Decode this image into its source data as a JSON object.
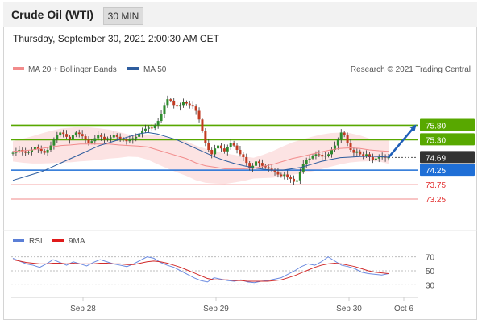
{
  "header": {
    "title": "Crude Oil (WTI)",
    "timeframe": "30 MIN"
  },
  "datetime": "Thursday, September 30, 2021 2:00:30 AM CET",
  "copyright": "Research © 2021 Trading Central",
  "chart_data": [
    {
      "type": "line",
      "panel": "price",
      "legend": [
        "MA 20 + Bollinger Bands",
        "MA 50"
      ],
      "legend_position": "top-left",
      "x_ticks": [
        "Sep 28",
        "Sep 29",
        "Sep 30",
        "Oct 6"
      ],
      "y_range": [
        73.0,
        77.4
      ],
      "current_price": 74.69,
      "levels": [
        {
          "label": "75.80",
          "value": 75.8,
          "color": "#58a800",
          "kind": "resistance"
        },
        {
          "label": "75.30",
          "value": 75.3,
          "color": "#58a800",
          "kind": "resistance"
        },
        {
          "label": "74.69",
          "value": 74.69,
          "color": "#333333",
          "kind": "current"
        },
        {
          "label": "74.25",
          "value": 74.25,
          "color": "#1f6fd6",
          "kind": "pivot"
        },
        {
          "label": "73.75",
          "value": 73.75,
          "color": "#e23030",
          "kind": "support"
        },
        {
          "label": "73.25",
          "value": 73.25,
          "color": "#e23030",
          "kind": "support"
        }
      ],
      "close": [
        74.85,
        74.92,
        74.95,
        74.9,
        74.85,
        74.88,
        74.95,
        75.05,
        74.98,
        74.92,
        74.85,
        74.95,
        75.1,
        75.3,
        75.45,
        75.55,
        75.5,
        75.4,
        75.3,
        75.45,
        75.55,
        75.5,
        75.42,
        75.3,
        75.2,
        75.25,
        75.35,
        75.45,
        75.4,
        75.3,
        75.35,
        75.38,
        75.45,
        75.4,
        75.33,
        75.3,
        75.25,
        75.3,
        75.35,
        75.4,
        75.5,
        75.62,
        75.68,
        75.72,
        75.7,
        75.8,
        75.95,
        76.2,
        76.5,
        76.7,
        76.65,
        76.5,
        76.45,
        76.5,
        76.6,
        76.55,
        76.5,
        76.45,
        76.3,
        76.0,
        75.6,
        75.2,
        74.95,
        74.8,
        75.0,
        75.1,
        75.0,
        74.9,
        75.05,
        75.2,
        75.1,
        74.95,
        74.8,
        74.7,
        74.5,
        74.3,
        74.4,
        74.55,
        74.5,
        74.4,
        74.35,
        74.3,
        74.25,
        74.2,
        74.1,
        74.05,
        74.1,
        74.0,
        73.95,
        73.85,
        73.9,
        74.2,
        74.45,
        74.6,
        74.65,
        74.75,
        74.8,
        74.78,
        74.72,
        74.75,
        74.8,
        74.95,
        75.1,
        75.3,
        75.55,
        75.45,
        75.2,
        74.95,
        74.85,
        74.9,
        74.8,
        74.75,
        74.8,
        74.7,
        74.6,
        74.65,
        74.7,
        74.72,
        74.68,
        74.69
      ],
      "ma20_bollinger_mid": [
        74.9,
        74.92,
        74.95,
        75.0,
        75.05,
        75.1,
        75.12,
        75.15,
        75.15,
        75.15,
        75.15,
        75.12,
        75.1,
        75.08,
        75.05,
        74.95,
        74.85,
        74.75,
        74.65,
        74.5,
        74.4,
        74.35,
        74.3,
        74.3,
        74.3,
        74.32,
        74.38,
        74.45,
        74.55,
        74.65,
        74.72,
        74.8,
        74.88,
        74.95,
        75.0,
        75.02,
        75.0,
        74.95,
        74.92,
        74.9
      ],
      "ma50": [
        73.9,
        74.0,
        74.1,
        74.2,
        74.35,
        74.5,
        74.65,
        74.8,
        74.95,
        75.1,
        75.2,
        75.3,
        75.4,
        75.5,
        75.55,
        75.5,
        75.4,
        75.3,
        75.15,
        75.0,
        74.85,
        74.7,
        74.58,
        74.48,
        74.4,
        74.33,
        74.28,
        74.25,
        74.25,
        74.3,
        74.35,
        74.45,
        74.55,
        74.62,
        74.68,
        74.7,
        74.72,
        74.73,
        74.72,
        74.7
      ]
    },
    {
      "type": "line",
      "panel": "rsi",
      "legend": [
        "RSI",
        "9MA"
      ],
      "y_ticks": [
        70,
        50,
        30
      ],
      "y_range": [
        20,
        80
      ],
      "rsi": [
        68,
        64,
        60,
        58,
        55,
        60,
        66,
        62,
        58,
        63,
        60,
        57,
        62,
        66,
        63,
        60,
        58,
        56,
        60,
        65,
        70,
        68,
        62,
        58,
        55,
        50,
        45,
        40,
        36,
        34,
        40,
        38,
        36,
        35,
        37,
        34,
        33,
        35,
        36,
        38,
        40,
        45,
        50,
        56,
        60,
        58,
        63,
        70,
        64,
        58,
        56,
        53,
        48,
        46,
        45,
        44,
        46
      ],
      "ma9": [
        66,
        64,
        62,
        61,
        60,
        60,
        61,
        61,
        60,
        61,
        60,
        60,
        60,
        61,
        61,
        60,
        60,
        59,
        59,
        61,
        63,
        64,
        63,
        61,
        58,
        55,
        51,
        47,
        43,
        39,
        37,
        37,
        37,
        36,
        36,
        35,
        35,
        35,
        35,
        36,
        37,
        40,
        43,
        47,
        51,
        55,
        58,
        60,
        61,
        60,
        58,
        56,
        53,
        50,
        48,
        47,
        46
      ]
    }
  ]
}
